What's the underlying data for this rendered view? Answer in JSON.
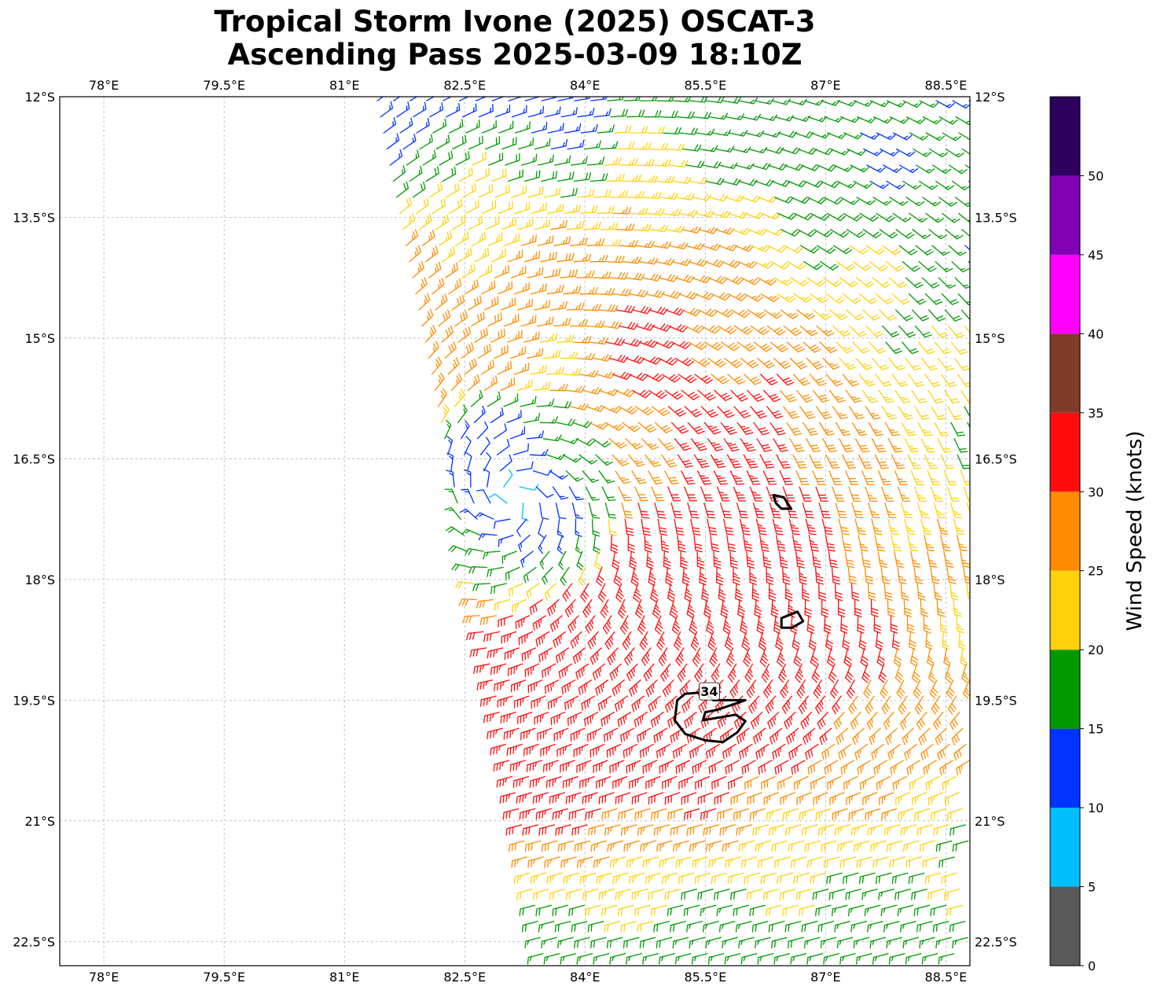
{
  "title": {
    "line1": "Tropical Storm Ivone (2025) OSCAT-3",
    "line2": "Ascending Pass 2025-03-09 18:10Z"
  },
  "map": {
    "lon_range": [
      77.45,
      88.8
    ],
    "lat_range": [
      -22.8,
      -12.0
    ],
    "lon_ticks": [
      78,
      79.5,
      81,
      82.5,
      84,
      85.5,
      87,
      88.5
    ],
    "lon_tick_labels": [
      "78°E",
      "79.5°E",
      "81°E",
      "82.5°E",
      "84°E",
      "85.5°E",
      "87°E",
      "88.5°E"
    ],
    "lat_ticks": [
      -12,
      -13.5,
      -15,
      -16.5,
      -18,
      -19.5,
      -21,
      -22.5
    ],
    "lat_tick_labels": [
      "12°S",
      "13.5°S",
      "15°S",
      "16.5°S",
      "18°S",
      "19.5°S",
      "21°S",
      "22.5°S"
    ],
    "grid": true,
    "storm_center": {
      "lon": 83.1,
      "lat": -17.0
    },
    "swath_west_edge": [
      [
        81.4,
        -12.0
      ],
      [
        82.0,
        -15.0
      ],
      [
        82.6,
        -18.0
      ],
      [
        83.2,
        -21.0
      ],
      [
        83.5,
        -22.8
      ]
    ],
    "contour_34kt": {
      "label": "34",
      "label_position": {
        "lon": 85.55,
        "lat": -19.4
      },
      "polygons": [
        [
          [
            86.35,
            -16.95
          ],
          [
            86.48,
            -16.98
          ],
          [
            86.57,
            -17.12
          ],
          [
            86.45,
            -17.12
          ],
          [
            86.38,
            -17.05
          ]
        ],
        [
          [
            86.45,
            -18.48
          ],
          [
            86.65,
            -18.4
          ],
          [
            86.72,
            -18.52
          ],
          [
            86.58,
            -18.6
          ],
          [
            86.45,
            -18.6
          ]
        ],
        [
          [
            85.6,
            -19.5
          ],
          [
            86.0,
            -19.5
          ],
          [
            85.65,
            -19.62
          ],
          [
            85.5,
            -19.65
          ],
          [
            85.47,
            -19.75
          ],
          [
            85.88,
            -19.68
          ],
          [
            86.0,
            -19.76
          ],
          [
            85.9,
            -19.9
          ],
          [
            85.72,
            -20.02
          ],
          [
            85.5,
            -20.0
          ],
          [
            85.25,
            -19.92
          ],
          [
            85.12,
            -19.75
          ],
          [
            85.15,
            -19.5
          ],
          [
            85.25,
            -19.42
          ],
          [
            85.5,
            -19.4
          ]
        ]
      ]
    }
  },
  "colorbar": {
    "label": "Wind Speed (knots)",
    "bins": [
      {
        "min": 0,
        "max": 5,
        "color": "#595959"
      },
      {
        "min": 5,
        "max": 10,
        "color": "#00bfff"
      },
      {
        "min": 10,
        "max": 15,
        "color": "#0033ff"
      },
      {
        "min": 15,
        "max": 20,
        "color": "#009900"
      },
      {
        "min": 20,
        "max": 25,
        "color": "#ffd20c"
      },
      {
        "min": 25,
        "max": 30,
        "color": "#ff8c00"
      },
      {
        "min": 30,
        "max": 35,
        "color": "#ff0d0d"
      },
      {
        "min": 35,
        "max": 40,
        "color": "#803a28"
      },
      {
        "min": 40,
        "max": 45,
        "color": "#ff00ff"
      },
      {
        "min": 45,
        "max": 50,
        "color": "#8000b3"
      },
      {
        "min": 50,
        "max": 55,
        "color": "#2d0060"
      }
    ],
    "ticks": [
      0,
      5,
      10,
      15,
      20,
      25,
      30,
      35,
      40,
      45,
      50
    ]
  }
}
